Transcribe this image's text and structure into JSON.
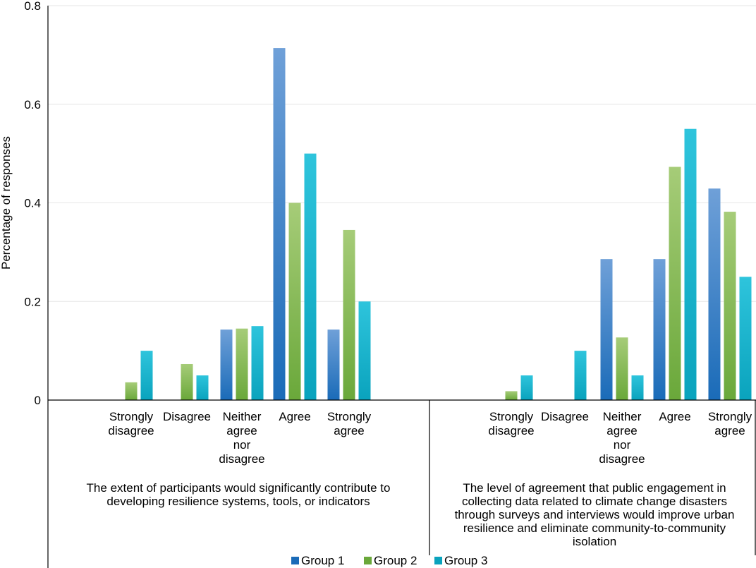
{
  "chart_data": {
    "type": "bar",
    "ylabel": "Percentage of responses",
    "ylim": [
      0,
      0.8
    ],
    "yticks": [
      "0",
      "0.2",
      "0.4",
      "0.6",
      "0.8"
    ],
    "grid": true,
    "legend_position": "bottom",
    "categories": [
      "Strongly disagree",
      "Disagree",
      "Neither agree nor disagree",
      "Agree",
      "Strongly agree"
    ],
    "groups": [
      {
        "title": "The extent of participants would significantly contribute to developing resilience systems, tools, or indicators",
        "title_lines": [
          "The extent of participants would significantly contribute to",
          "developing resilience systems, tools, or indicators"
        ],
        "category_lines": [
          [
            "Strongly",
            "disagree"
          ],
          [
            "Disagree"
          ],
          [
            "Neither",
            "agree",
            "nor",
            "disagree"
          ],
          [
            "Agree"
          ],
          [
            "Strongly",
            "agree"
          ]
        ],
        "series": [
          {
            "name": "Group 1",
            "values": [
              0,
              0,
              0.143,
              0.714,
              0.143
            ]
          },
          {
            "name": "Group 2",
            "values": [
              0.036,
              0.073,
              0.145,
              0.4,
              0.345
            ]
          },
          {
            "name": "Group 3",
            "values": [
              0.1,
              0.05,
              0.15,
              0.5,
              0.2
            ]
          }
        ]
      },
      {
        "title": "The level of agreement that public engagement in collecting data related to climate change disasters through surveys and interviews would improve urban resilience and eliminate community-to-community isolation",
        "title_lines": [
          "The level of agreement that public engagement in",
          "collecting data related to climate change disasters",
          "through surveys and interviews would improve urban",
          "resilience and eliminate community-to-community",
          "isolation"
        ],
        "category_lines": [
          [
            "Strongly",
            "disagree"
          ],
          [
            "Disagree"
          ],
          [
            "Neither",
            "agree",
            "nor",
            "disagree"
          ],
          [
            "Agree"
          ],
          [
            "Strongly",
            "agree"
          ]
        ],
        "series": [
          {
            "name": "Group 1",
            "values": [
              0,
              0,
              0.286,
              0.286,
              0.429
            ]
          },
          {
            "name": "Group 2",
            "values": [
              0.018,
              0,
              0.127,
              0.473,
              0.382
            ]
          },
          {
            "name": "Group 3",
            "values": [
              0.05,
              0.1,
              0.05,
              0.55,
              0.25
            ]
          }
        ]
      }
    ],
    "legend": [
      "Group 1",
      "Group 2",
      "Group 3"
    ],
    "colors": {
      "Group 1": [
        "#6fa0d8",
        "#1a6bb8"
      ],
      "Group 2": [
        "#a6cc78",
        "#6aa83a"
      ],
      "Group 3": [
        "#2ec4dc",
        "#0aa3bd"
      ]
    }
  }
}
